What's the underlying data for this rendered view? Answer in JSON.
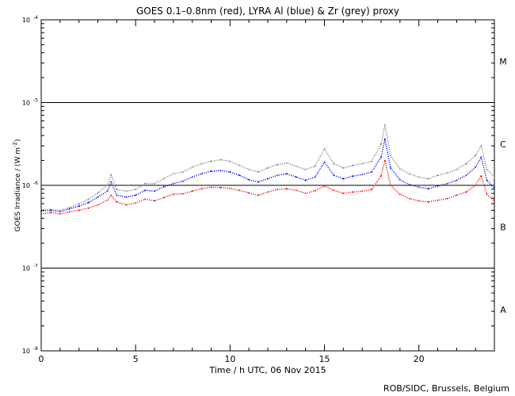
{
  "chart_data": {
    "type": "line",
    "title": "GOES 0.1–0.8nm (red), LYRA Al (blue) & Zr (grey) proxy",
    "xlabel": "Time / h UTC, 06 Nov 2015",
    "ylabel_main": "GOES Irradiance / (W m",
    "ylabel_sup": "-2",
    "ylabel_end": ")",
    "credit": "ROB/SIDC, Brussels, Belgium",
    "xlim": [
      0,
      24
    ],
    "ylim_log10": [
      -8,
      -4
    ],
    "yscale": "log",
    "x_ticks": [
      0,
      5,
      10,
      15,
      20
    ],
    "x_tick_labels": [
      "0",
      "5",
      "10",
      "15",
      "20"
    ],
    "y_ticks_exp": [
      -8,
      -7,
      -6,
      -5,
      -4
    ],
    "y_tick_base": "10",
    "y_tick_exp_labels": [
      "-8",
      "-7",
      "-6",
      "-5",
      "-4"
    ],
    "flare_classes": [
      {
        "label": "A",
        "log_center": -7.5
      },
      {
        "label": "B",
        "log_center": -6.5
      },
      {
        "label": "C",
        "log_center": -5.5
      },
      {
        "label": "M",
        "log_center": -4.5
      }
    ],
    "reference_lines_log": [
      -7,
      -6,
      -5
    ],
    "series": [
      {
        "color": "#ff0000",
        "x": [
          0,
          0.5,
          1,
          1.5,
          2,
          2.5,
          3,
          3.5,
          3.7,
          4,
          4.5,
          5,
          5.5,
          6,
          6.5,
          7,
          7.5,
          8,
          8.5,
          9,
          9.5,
          10,
          10.5,
          11,
          11.5,
          12,
          12.5,
          13,
          13.5,
          14,
          14.5,
          15,
          15.5,
          16,
          16.5,
          17,
          17.5,
          18,
          18.2,
          18.5,
          19,
          19.5,
          20,
          20.5,
          21,
          21.5,
          22,
          22.5,
          23,
          23.3,
          23.6,
          24
        ],
        "y": [
          4.5e-07,
          4.7e-07,
          4.5e-07,
          4.8e-07,
          5e-07,
          5.3e-07,
          5.8e-07,
          6.6e-07,
          7.6e-07,
          6.3e-07,
          5.8e-07,
          6.1e-07,
          6.8e-07,
          6.5e-07,
          7.1e-07,
          7.8e-07,
          7.9e-07,
          8.5e-07,
          9.1e-07,
          9.5e-07,
          9.4e-07,
          9.2e-07,
          8.7e-07,
          8.1e-07,
          7.6e-07,
          8.3e-07,
          8.9e-07,
          9.1e-07,
          8.7e-07,
          8e-07,
          8.6e-07,
          9.8e-07,
          8.7e-07,
          8e-07,
          8.3e-07,
          8.5e-07,
          8.9e-07,
          1.3e-06,
          2e-06,
          1e-06,
          7.8e-07,
          6.9e-07,
          6.5e-07,
          6.3e-07,
          6.6e-07,
          6.9e-07,
          7.6e-07,
          8.3e-07,
          1e-06,
          1.3e-06,
          7.8e-07,
          6.5e-07
        ]
      },
      {
        "color": "#0000ff",
        "x": [
          0,
          0.5,
          1,
          1.5,
          2,
          2.5,
          3,
          3.5,
          3.7,
          4,
          4.5,
          5,
          5.5,
          6,
          6.5,
          7,
          7.5,
          8,
          8.5,
          9,
          9.5,
          10,
          10.5,
          11,
          11.5,
          12,
          12.5,
          13,
          13.5,
          14,
          14.5,
          15,
          15.5,
          16,
          16.5,
          17,
          17.5,
          18,
          18.2,
          18.5,
          19,
          19.5,
          20,
          20.5,
          21,
          21.5,
          22,
          22.5,
          23,
          23.3,
          23.6,
          24
        ],
        "y": [
          4.9e-07,
          5e-07,
          4.8e-07,
          5.2e-07,
          5.6e-07,
          6.2e-07,
          7.2e-07,
          8.5e-07,
          1.1e-06,
          7.6e-07,
          7.2e-07,
          7.6e-07,
          8.7e-07,
          8.5e-07,
          9.6e-07,
          1.05e-06,
          1.12e-06,
          1.26e-06,
          1.38e-06,
          1.48e-06,
          1.51e-06,
          1.45e-06,
          1.32e-06,
          1.17e-06,
          1.1e-06,
          1.2e-06,
          1.32e-06,
          1.38e-06,
          1.26e-06,
          1.15e-06,
          1.26e-06,
          1.91e-06,
          1.32e-06,
          1.2e-06,
          1.29e-06,
          1.35e-06,
          1.45e-06,
          2.19e-06,
          3.63e-06,
          1.62e-06,
          1.17e-06,
          1.02e-06,
          9.5e-07,
          9.1e-07,
          9.8e-07,
          1.05e-06,
          1.15e-06,
          1.32e-06,
          1.66e-06,
          2.19e-06,
          1.15e-06,
          9.3e-07
        ]
      },
      {
        "color": "#808080",
        "x": [
          0,
          0.5,
          1,
          1.5,
          2,
          2.5,
          3,
          3.5,
          3.7,
          4,
          4.5,
          5,
          5.5,
          6,
          6.5,
          7,
          7.5,
          8,
          8.5,
          9,
          9.5,
          10,
          10.5,
          11,
          11.5,
          12,
          12.5,
          13,
          13.5,
          14,
          14.5,
          15,
          15.5,
          16,
          16.5,
          17,
          17.5,
          18,
          18.2,
          18.5,
          19,
          19.5,
          20,
          20.5,
          21,
          21.5,
          22,
          22.5,
          23,
          23.3,
          23.6,
          24
        ],
        "y": [
          5.1e-07,
          5.1e-07,
          5e-07,
          5.4e-07,
          6e-07,
          6.8e-07,
          8.1e-07,
          1e-06,
          1.35e-06,
          8.9e-07,
          8.5e-07,
          8.9e-07,
          1.05e-06,
          1.05e-06,
          1.2e-06,
          1.38e-06,
          1.45e-06,
          1.66e-06,
          1.82e-06,
          1.95e-06,
          2.04e-06,
          1.95e-06,
          1.74e-06,
          1.55e-06,
          1.45e-06,
          1.62e-06,
          1.78e-06,
          1.86e-06,
          1.7e-06,
          1.55e-06,
          1.7e-06,
          2.75e-06,
          1.82e-06,
          1.62e-06,
          1.74e-06,
          1.82e-06,
          1.95e-06,
          3.16e-06,
          5.37e-06,
          2.29e-06,
          1.58e-06,
          1.38e-06,
          1.26e-06,
          1.2e-06,
          1.32e-06,
          1.41e-06,
          1.55e-06,
          1.82e-06,
          2.29e-06,
          3.02e-06,
          1.55e-06,
          1.26e-06
        ]
      }
    ],
    "grid": false,
    "legend": "none"
  }
}
